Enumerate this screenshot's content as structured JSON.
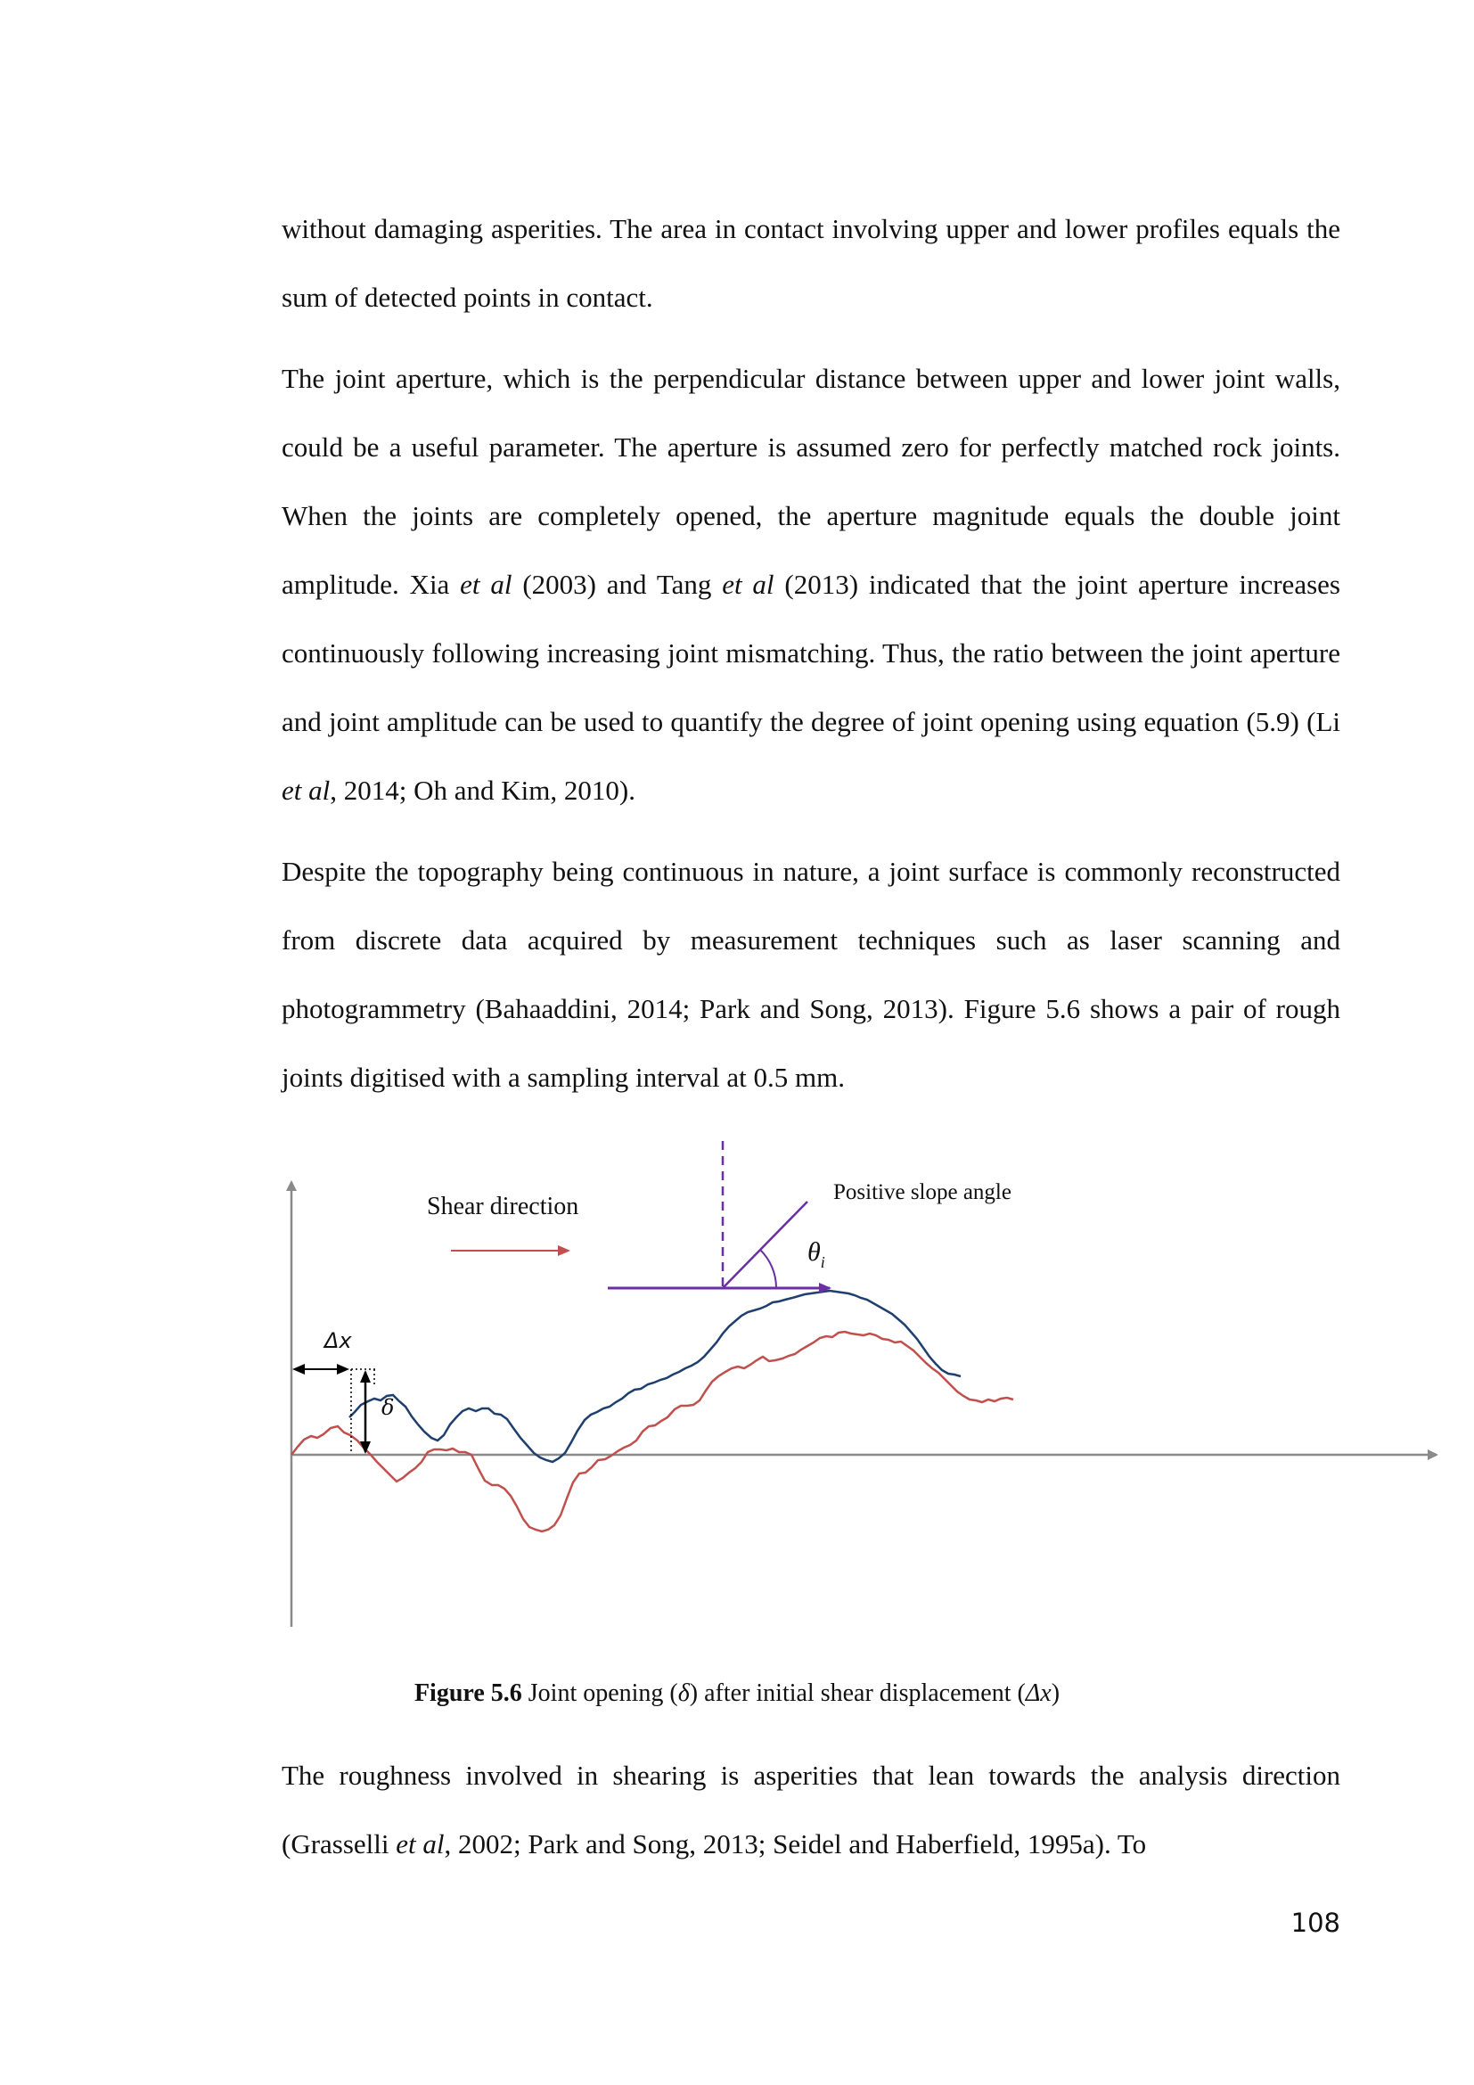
{
  "paragraphs": [
    {
      "segments": [
        {
          "t": "without damaging asperities. The area in contact involving upper and lower profiles equals the sum of detected points in contact."
        }
      ]
    },
    {
      "segments": [
        {
          "t": "The joint aperture, which is the perpendicular distance between upper and lower joint walls, could be a useful parameter. The aperture is assumed zero for perfectly matched rock joints. When the joints are completely opened, the aperture magnitude equals the double joint amplitude. Xia "
        },
        {
          "t": "et al",
          "i": true
        },
        {
          "t": " (2003) and Tang "
        },
        {
          "t": "et al",
          "i": true
        },
        {
          "t": " (2013) indicated that the joint aperture increases continuously following increasing joint mismatching. Thus, the ratio between the joint aperture and joint amplitude can be used to quantify the degree of joint opening using equation (5.9) (Li "
        },
        {
          "t": "et al",
          "i": true
        },
        {
          "t": ", 2014; Oh and Kim, 2010)."
        }
      ]
    },
    {
      "segments": [
        {
          "t": "Despite the topography being continuous in nature, a joint surface is commonly reconstructed from discrete data acquired by measurement techniques such as laser scanning and photogrammetry (Bahaaddini, 2014; Park and Song, 2013). Figure 5.6 shows a pair of rough joints digitised with a sampling interval at 0.5 mm."
        }
      ]
    },
    {
      "segments": [
        {
          "t": "The roughness involved in shearing is asperities that lean towards the analysis direction (Grasselli "
        },
        {
          "t": "et al",
          "i": true
        },
        {
          "t": ", 2002; Park and Song, 2013; Seidel and Haberfield, 1995a). To"
        }
      ]
    }
  ],
  "figure": {
    "shear_label": "Shear direction",
    "slope_label": "Positive slope angle",
    "theta_symbol": "θ",
    "theta_subscript": "i",
    "dx_label": "Δx",
    "delta_label": "δ",
    "colors": {
      "upper": "#1f3f6f",
      "lower": "#c0504d",
      "axis": "#8a8a8a",
      "angle": "#6a2fa5",
      "arrow": "#c0504d"
    }
  },
  "caption": {
    "label": "Figure 5.6",
    "pre": " Joint opening (",
    "delta": "δ",
    "mid": ") after initial shear displacement (",
    "dx": "Δx",
    "post": ")"
  },
  "page_number": "108"
}
